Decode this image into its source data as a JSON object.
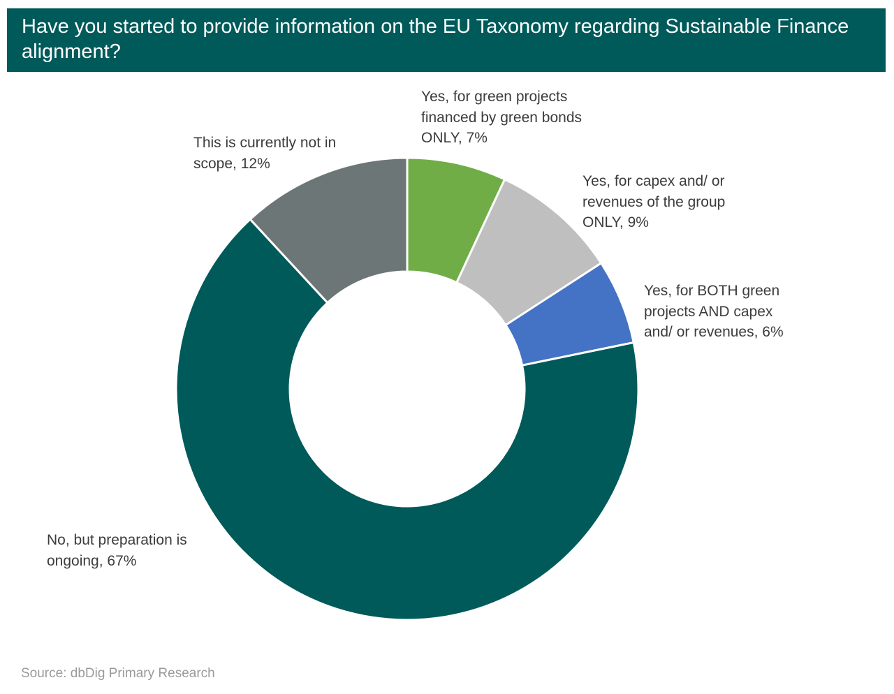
{
  "title": "Have you started to provide information on the EU Taxonomy regarding Sustainable Finance alignment?",
  "source": "Source: dbDig Primary Research",
  "chart_data": {
    "type": "pie",
    "style": "donut",
    "title": "Have you started to provide information on the EU Taxonomy regarding Sustainable Finance alignment?",
    "unit": "%",
    "slices": [
      {
        "label": "Yes, for green projects financed by green bonds ONLY, 7%",
        "value": 7,
        "color": "#70ad47"
      },
      {
        "label": "Yes, for capex and/ or revenues of the group ONLY, 9%",
        "value": 9,
        "color": "#bfbfbf"
      },
      {
        "label": "Yes, for BOTH green projects AND capex and/ or revenues, 6%",
        "value": 6,
        "color": "#4472c4"
      },
      {
        "label": "No, but preparation is ongoing, 67%",
        "value": 67,
        "color": "#005a5a"
      },
      {
        "label": "This is currently not in scope, 12%",
        "value": 12,
        "color": "#6d7676"
      }
    ]
  }
}
